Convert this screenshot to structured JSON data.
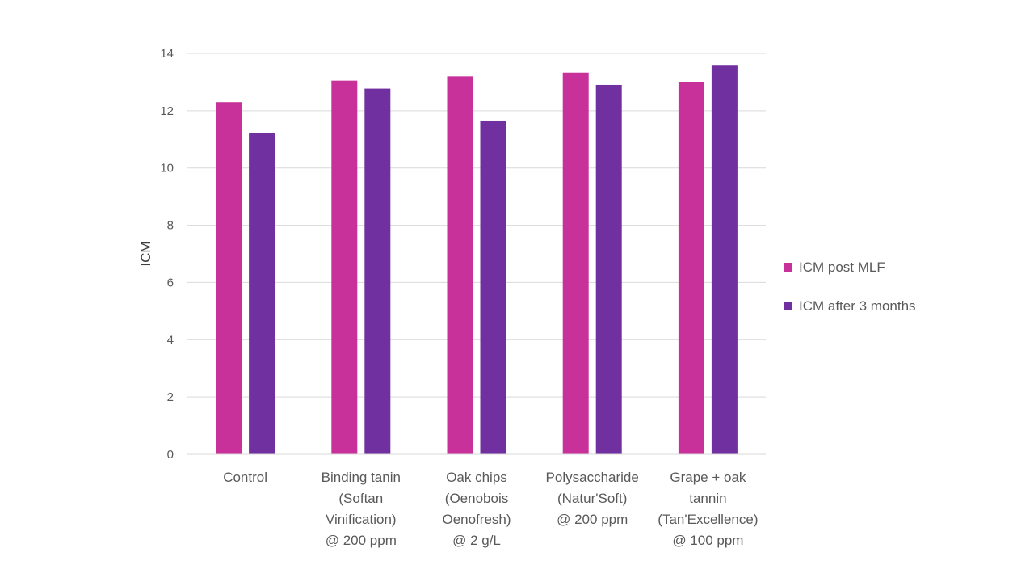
{
  "chart_data": {
    "type": "bar",
    "categories": [
      [
        "Control"
      ],
      [
        "Binding tanin",
        "(Softan",
        "Vinification)",
        "@ 200 ppm"
      ],
      [
        "Oak chips",
        "(Oenobois",
        "Oenofresh)",
        "@ 2 g/L"
      ],
      [
        "Polysaccharide",
        "(Natur'Soft)",
        "@ 200 ppm"
      ],
      [
        "Grape + oak",
        "tannin",
        "(Tan'Excellence)",
        "@ 100 ppm"
      ]
    ],
    "series": [
      {
        "name": "ICM post MLF",
        "color": "#C8309A",
        "values": [
          12.3,
          13.05,
          13.2,
          13.33,
          13.0
        ]
      },
      {
        "name": "ICM after 3 months",
        "color": "#7030A0",
        "values": [
          11.22,
          12.77,
          11.63,
          12.9,
          13.57
        ]
      }
    ],
    "xlabel": "",
    "ylabel": "ICM",
    "ylim": [
      0,
      14
    ],
    "yticks": [
      0,
      2,
      4,
      6,
      8,
      10,
      12,
      14
    ],
    "grid": true,
    "legend_position": "right"
  }
}
